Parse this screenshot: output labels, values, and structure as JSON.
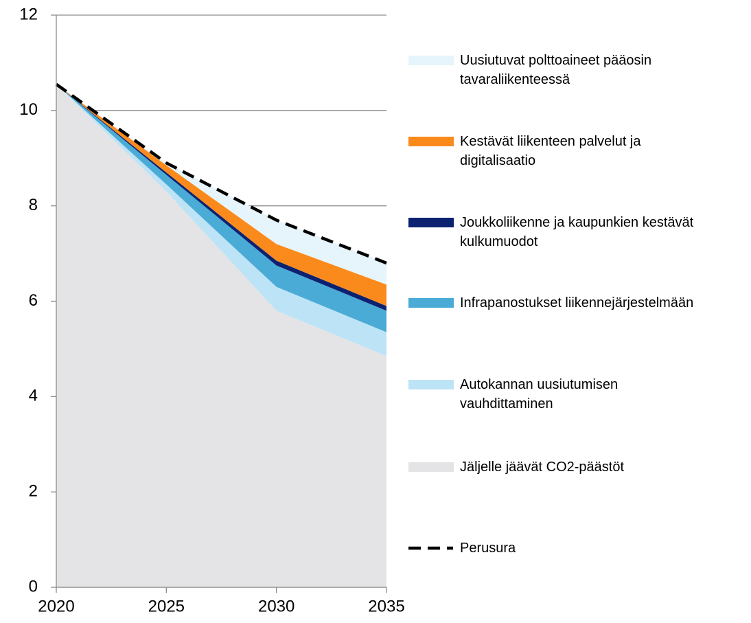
{
  "chart_data": {
    "type": "area",
    "stacked": true,
    "x": [
      2020,
      2025,
      2030,
      2035
    ],
    "xlim": [
      2020,
      2035
    ],
    "xticks": [
      2020,
      2025,
      2030,
      2035
    ],
    "ylim": [
      0,
      12
    ],
    "yticks": [
      0,
      2,
      4,
      6,
      8,
      10,
      12
    ],
    "grid": true,
    "series": [
      {
        "name": "Jäljelle jäävät CO2-päästöt",
        "color": "#e4e4e6",
        "values": [
          10.55,
          8.3,
          5.8,
          4.85
        ]
      },
      {
        "name": "Autokannan uusiutumisen\nvauhdittaminen",
        "color": "#bde3f6",
        "values": [
          0,
          0.15,
          0.5,
          0.5
        ]
      },
      {
        "name": "Infrapanostukset liikennejärjestelmään",
        "color": "#4aabd6",
        "values": [
          0,
          0.2,
          0.45,
          0.45
        ]
      },
      {
        "name": "Joukkoliikenne ja kaupunkien kestävät\nkulkumuodot",
        "color": "#0c2270",
        "values": [
          0,
          0.05,
          0.1,
          0.1
        ]
      },
      {
        "name": "Kestävät liikenteen palvelut ja\ndigitalisaatio",
        "color": "#fb8a1c",
        "values": [
          0,
          0.15,
          0.35,
          0.45
        ]
      },
      {
        "name": "Uusiutuvat polttoaineet pääosin\ntavaraliikenteessä",
        "color": "#e6f4fb",
        "values": [
          0,
          0.05,
          0.5,
          0.45
        ]
      }
    ],
    "line": {
      "name": "Perusura",
      "color": "#000000",
      "dashed": true,
      "values": [
        10.55,
        8.9,
        7.7,
        6.8
      ]
    }
  }
}
